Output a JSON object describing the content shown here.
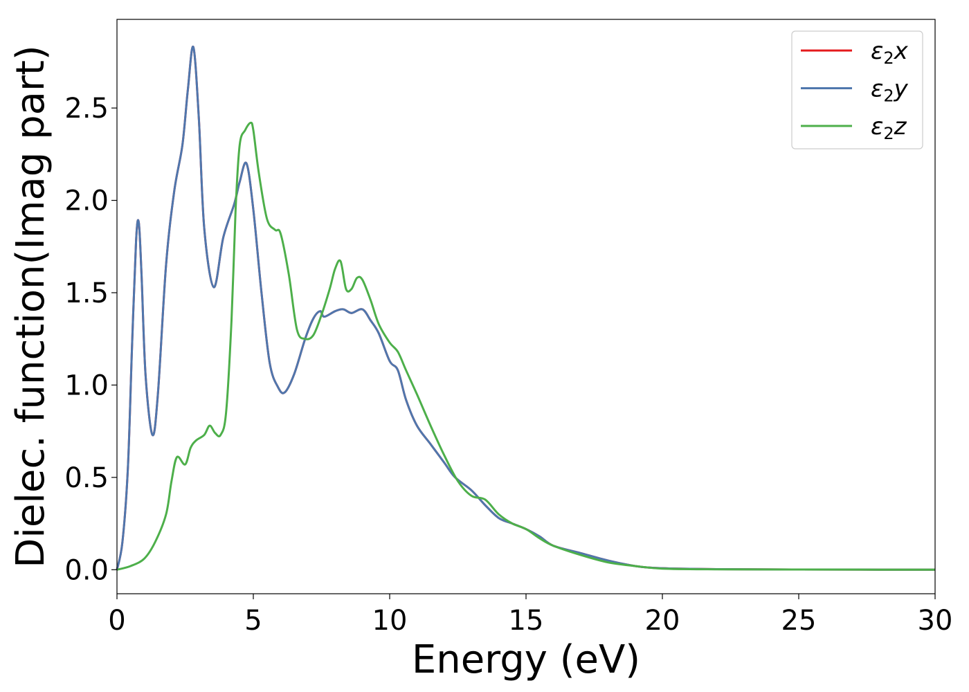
{
  "chart_data": {
    "type": "line",
    "title": "",
    "xlabel": "Energy (eV)",
    "ylabel": "Dielec. function(Imag part)",
    "xlim": [
      0,
      30
    ],
    "ylim": [
      -0.13,
      2.98
    ],
    "xticks": [
      0,
      5,
      10,
      15,
      20,
      25,
      30
    ],
    "xtick_labels": [
      "0",
      "5",
      "10",
      "15",
      "20",
      "25",
      "30"
    ],
    "yticks": [
      0.0,
      0.5,
      1.0,
      1.5,
      2.0,
      2.5
    ],
    "ytick_labels": [
      "0.0",
      "0.5",
      "1.0",
      "1.5",
      "2.0",
      "2.5"
    ],
    "grid": false,
    "legend_position": "top-right",
    "series": [
      {
        "name": "ε₂x",
        "legend": {
          "main": "ε",
          "sub": "2",
          "axis": "x"
        },
        "color": "#e41a1c",
        "x": [
          0,
          0.2,
          0.4,
          0.55,
          0.7,
          0.8,
          0.9,
          1.05,
          1.3,
          1.5,
          1.8,
          2.1,
          2.4,
          2.6,
          2.8,
          3.0,
          3.2,
          3.55,
          3.9,
          4.3,
          4.5,
          4.75,
          5.0,
          5.3,
          5.6,
          5.9,
          6.15,
          6.5,
          6.9,
          7.2,
          7.45,
          7.6,
          8.0,
          8.3,
          8.6,
          9.0,
          9.3,
          9.6,
          10.0,
          10.3,
          10.6,
          11.0,
          11.5,
          12.0,
          12.4,
          13.0,
          13.5,
          14.0,
          14.5,
          15.0,
          15.5,
          16.0,
          17.0,
          18.0,
          19.0,
          20.0,
          22.0,
          25.0,
          30.0
        ],
        "y": [
          0.0,
          0.15,
          0.55,
          1.2,
          1.78,
          1.88,
          1.6,
          1.05,
          0.73,
          0.95,
          1.65,
          2.05,
          2.3,
          2.6,
          2.83,
          2.45,
          1.85,
          1.53,
          1.8,
          1.98,
          2.1,
          2.2,
          1.95,
          1.5,
          1.12,
          0.99,
          0.96,
          1.06,
          1.25,
          1.36,
          1.4,
          1.37,
          1.4,
          1.41,
          1.39,
          1.41,
          1.35,
          1.28,
          1.13,
          1.08,
          0.92,
          0.78,
          0.68,
          0.58,
          0.5,
          0.43,
          0.35,
          0.28,
          0.25,
          0.22,
          0.18,
          0.13,
          0.09,
          0.05,
          0.02,
          0.008,
          0.003,
          0.001,
          0.0
        ]
      },
      {
        "name": "ε₂y",
        "legend": {
          "main": "ε",
          "sub": "2",
          "axis": "y"
        },
        "color": "#4f77ad",
        "x": [
          0,
          0.2,
          0.4,
          0.55,
          0.7,
          0.8,
          0.9,
          1.05,
          1.3,
          1.5,
          1.8,
          2.1,
          2.4,
          2.6,
          2.8,
          3.0,
          3.2,
          3.55,
          3.9,
          4.3,
          4.5,
          4.75,
          5.0,
          5.3,
          5.6,
          5.9,
          6.15,
          6.5,
          6.9,
          7.2,
          7.45,
          7.6,
          8.0,
          8.3,
          8.6,
          9.0,
          9.3,
          9.6,
          10.0,
          10.3,
          10.6,
          11.0,
          11.5,
          12.0,
          12.4,
          13.0,
          13.5,
          14.0,
          14.5,
          15.0,
          15.5,
          16.0,
          17.0,
          18.0,
          19.0,
          20.0,
          22.0,
          25.0,
          30.0
        ],
        "y": [
          0.0,
          0.15,
          0.55,
          1.2,
          1.78,
          1.88,
          1.6,
          1.05,
          0.73,
          0.95,
          1.65,
          2.05,
          2.3,
          2.6,
          2.83,
          2.45,
          1.85,
          1.53,
          1.8,
          1.98,
          2.1,
          2.2,
          1.95,
          1.5,
          1.12,
          0.99,
          0.96,
          1.06,
          1.25,
          1.36,
          1.4,
          1.37,
          1.4,
          1.41,
          1.39,
          1.41,
          1.35,
          1.28,
          1.13,
          1.08,
          0.92,
          0.78,
          0.68,
          0.58,
          0.5,
          0.43,
          0.35,
          0.28,
          0.25,
          0.22,
          0.18,
          0.13,
          0.09,
          0.05,
          0.02,
          0.008,
          0.003,
          0.001,
          0.0
        ]
      },
      {
        "name": "ε₂z",
        "legend": {
          "main": "ε",
          "sub": "2",
          "axis": "z"
        },
        "color": "#4daf4a",
        "x": [
          0,
          0.5,
          1.0,
          1.4,
          1.8,
          2.0,
          2.2,
          2.5,
          2.7,
          2.9,
          3.2,
          3.4,
          3.6,
          3.8,
          4.0,
          4.2,
          4.35,
          4.5,
          4.7,
          4.9,
          5.0,
          5.2,
          5.5,
          5.8,
          6.0,
          6.3,
          6.6,
          6.9,
          7.2,
          7.5,
          7.8,
          8.0,
          8.2,
          8.4,
          8.6,
          8.8,
          9.0,
          9.3,
          9.6,
          10.0,
          10.3,
          10.6,
          11.0,
          11.5,
          12.0,
          12.5,
          13.0,
          13.5,
          14.0,
          14.5,
          15.0,
          15.5,
          16.0,
          17.0,
          18.0,
          19.0,
          20.0,
          22.0,
          25.0,
          30.0
        ],
        "y": [
          0.0,
          0.02,
          0.06,
          0.15,
          0.3,
          0.48,
          0.61,
          0.57,
          0.66,
          0.7,
          0.73,
          0.78,
          0.74,
          0.73,
          0.85,
          1.35,
          1.95,
          2.3,
          2.38,
          2.42,
          2.38,
          2.15,
          1.9,
          1.84,
          1.82,
          1.6,
          1.3,
          1.25,
          1.27,
          1.38,
          1.52,
          1.63,
          1.67,
          1.52,
          1.52,
          1.58,
          1.57,
          1.46,
          1.33,
          1.23,
          1.18,
          1.08,
          0.95,
          0.78,
          0.62,
          0.48,
          0.4,
          0.38,
          0.3,
          0.25,
          0.22,
          0.17,
          0.13,
          0.08,
          0.04,
          0.02,
          0.006,
          0.002,
          0.001,
          0.0
        ]
      }
    ]
  }
}
